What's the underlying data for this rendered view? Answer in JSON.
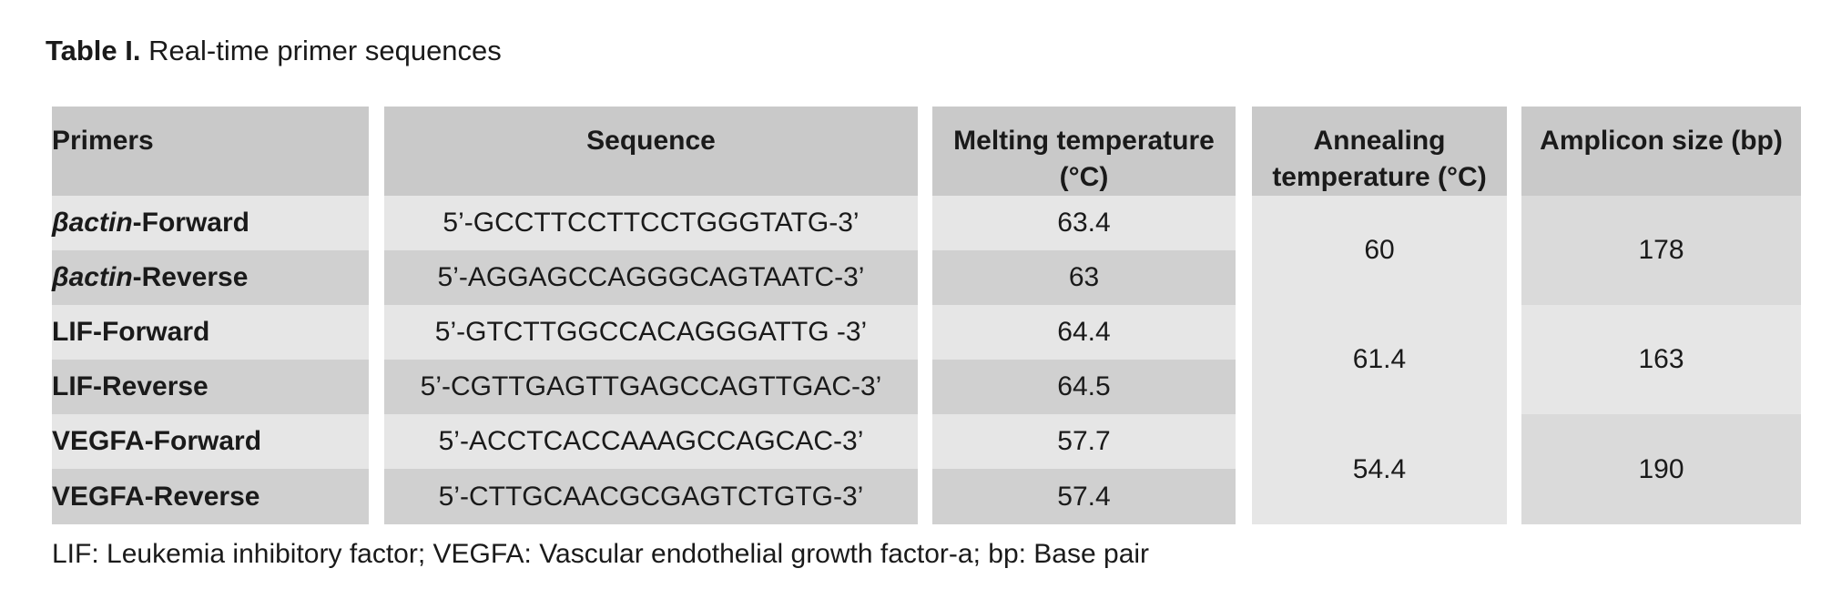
{
  "caption": {
    "label": "Table I.",
    "title": "Real-time primer sequences"
  },
  "table": {
    "headers": {
      "primers": "Primers",
      "sequence": "Sequence",
      "melting_line1": "Melting temperature",
      "melting_line2": "(°C)",
      "annealing_line1": "Annealing",
      "annealing_line2": "temperature (°C)",
      "amplicon": "Amplicon size (bp)"
    },
    "rows": [
      {
        "primer_gene": "βactin",
        "primer_suffix": "-Forward",
        "sequence": "5’-GCCTTCCTTCCTGGGTATG-3’",
        "melting": "63.4"
      },
      {
        "primer_gene": "βactin",
        "primer_suffix": "-Reverse",
        "sequence": "5’-AGGAGCCAGGGCAGTAATC-3’",
        "melting": "63"
      },
      {
        "primer_gene": "",
        "primer_suffix": "LIF-Forward",
        "sequence": "5’-GTCTTGGCCACAGGGATTG -3’",
        "melting": "64.4"
      },
      {
        "primer_gene": "",
        "primer_suffix": "LIF-Reverse",
        "sequence": "5’-CGTTGAGTTGAGCCAGTTGAC-3’",
        "melting": "64.5"
      },
      {
        "primer_gene": "",
        "primer_suffix": "VEGFA-Forward",
        "sequence": "5’-ACCTCACCAAAGCCAGCAC-3’",
        "melting": "57.7"
      },
      {
        "primer_gene": "",
        "primer_suffix": "VEGFA-Reverse",
        "sequence": "5’-CTTGCAACGCGAGTCTGTG-3’",
        "melting": "57.4"
      }
    ],
    "groups": [
      {
        "annealing": "60",
        "amplicon": "178"
      },
      {
        "annealing": "61.4",
        "amplicon": "163"
      },
      {
        "annealing": "54.4",
        "amplicon": "190"
      }
    ]
  },
  "footnote": "LIF: Leukemia inhibitory factor; VEGFA: Vascular endothelial growth factor-a; bp: Base pair"
}
